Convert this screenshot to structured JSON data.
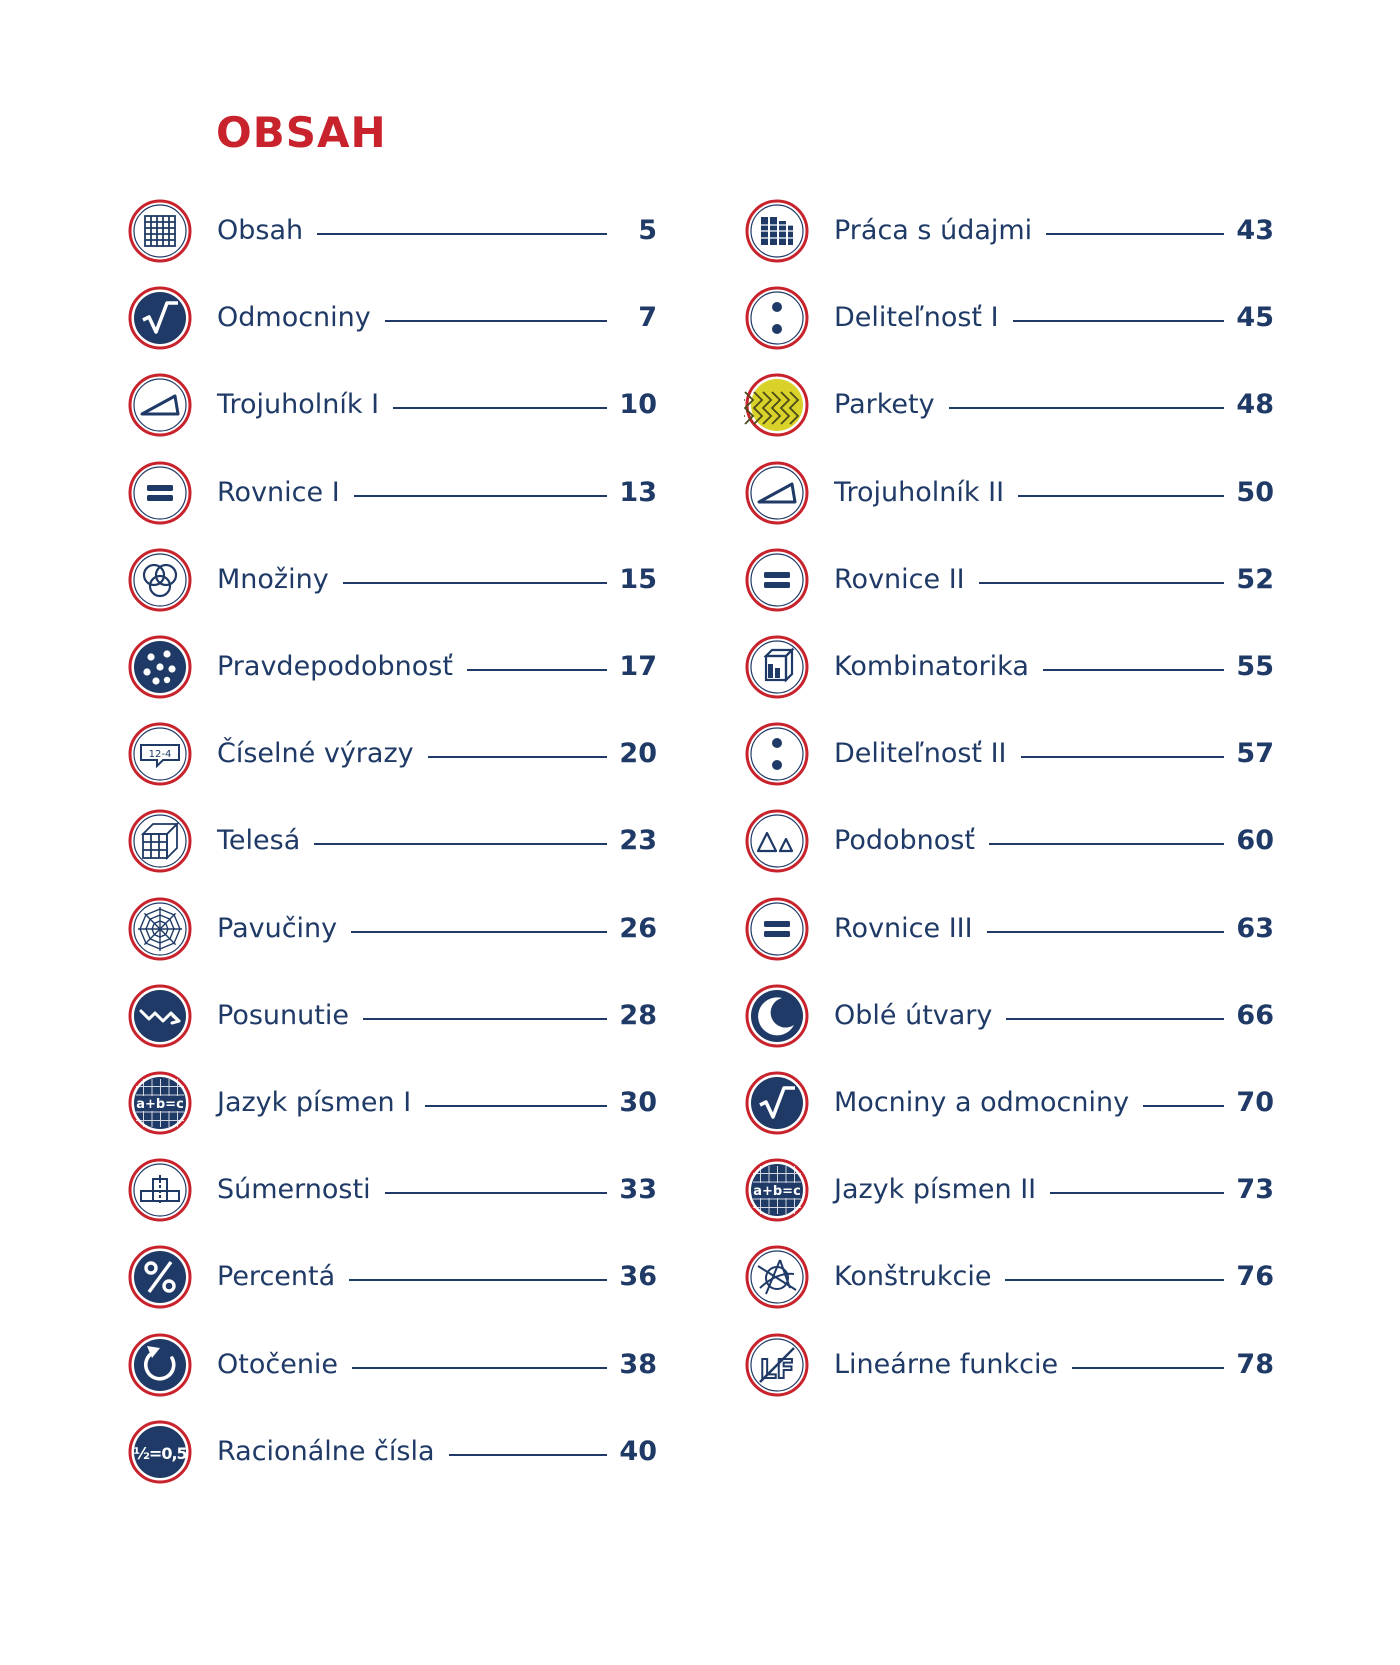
{
  "title": "OBSAH",
  "colors": {
    "title": "#c8232c",
    "text": "#1f3a66",
    "ring": "#c8232c",
    "fill": "#1f3a66"
  },
  "left": [
    {
      "label": "Obsah",
      "page": "5",
      "icon": "grid-icon"
    },
    {
      "label": "Odmocniny",
      "page": "7",
      "icon": "square-root-icon"
    },
    {
      "label": "Trojuholník I",
      "page": "10",
      "icon": "triangle-icon"
    },
    {
      "label": "Rovnice I",
      "page": "13",
      "icon": "equals-icon"
    },
    {
      "label": "Množiny",
      "page": "15",
      "icon": "venn-icon"
    },
    {
      "label": "Pravdepodobnosť",
      "page": "17",
      "icon": "dice-icon"
    },
    {
      "label": "Číselné výrazy",
      "page": "20",
      "icon": "expression-bubble-icon",
      "icon_text": "12-4"
    },
    {
      "label": "Telesá",
      "page": "23",
      "icon": "cube-icon"
    },
    {
      "label": "Pavučiny",
      "page": "26",
      "icon": "spiderweb-icon"
    },
    {
      "label": "Posunutie",
      "page": "28",
      "icon": "translation-arrows-icon"
    },
    {
      "label": "Jazyk písmen I",
      "page": "30",
      "icon": "algebra-icon",
      "icon_text": "a+b=c"
    },
    {
      "label": "Súmernosti",
      "page": "33",
      "icon": "symmetry-blocks-icon"
    },
    {
      "label": "Percentá",
      "page": "36",
      "icon": "percent-icon"
    },
    {
      "label": "Otočenie",
      "page": "38",
      "icon": "rotation-icon"
    },
    {
      "label": "Racionálne čísla",
      "page": "40",
      "icon": "fraction-icon",
      "icon_text": "½=0,5"
    }
  ],
  "right": [
    {
      "label": "Práca s údajmi",
      "page": "43",
      "icon": "data-table-icon"
    },
    {
      "label": "Deliteľnosť I",
      "page": "45",
      "icon": "divisibility-icon"
    },
    {
      "label": "Parkety",
      "page": "48",
      "icon": "parquet-icon"
    },
    {
      "label": "Trojuholník II",
      "page": "50",
      "icon": "triangle-icon"
    },
    {
      "label": "Rovnice II",
      "page": "52",
      "icon": "equals-icon"
    },
    {
      "label": "Kombinatorika",
      "page": "55",
      "icon": "combinatorics-icon"
    },
    {
      "label": "Deliteľnosť II",
      "page": "57",
      "icon": "divisibility-icon"
    },
    {
      "label": "Podobnosť",
      "page": "60",
      "icon": "similar-triangles-icon"
    },
    {
      "label": "Rovnice III",
      "page": "63",
      "icon": "equals-icon"
    },
    {
      "label": "Oblé útvary",
      "page": "66",
      "icon": "crescent-icon"
    },
    {
      "label": "Mocniny a odmocniny",
      "page": "70",
      "icon": "square-root-icon"
    },
    {
      "label": "Jazyk písmen II",
      "page": "73",
      "icon": "algebra-icon",
      "icon_text": "a+b=c"
    },
    {
      "label": "Konštrukcie",
      "page": "76",
      "icon": "compass-construction-icon"
    },
    {
      "label": "Lineárne funkcie",
      "page": "78",
      "icon": "linear-function-icon",
      "icon_text": "LF"
    }
  ]
}
